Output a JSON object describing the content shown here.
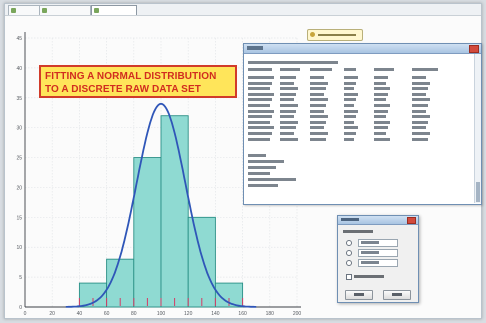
{
  "banner": {
    "line1": "FITTING A NORMAL DISTRIBUTION",
    "line2": "TO A DISCRETE RAW DATA SET"
  },
  "chart_data": {
    "type": "bar",
    "categories": [
      "40-60",
      "60-80",
      "80-100",
      "100-120",
      "120-140",
      "140-160"
    ],
    "values": [
      4,
      8,
      25,
      32,
      15,
      4
    ],
    "xlim": [
      0,
      200
    ],
    "ylim": [
      0,
      45
    ],
    "x_ticks": [
      0,
      20,
      40,
      60,
      80,
      100,
      120,
      140,
      160,
      180,
      200
    ],
    "y_ticks": [
      0,
      5,
      10,
      15,
      20,
      25,
      30,
      35,
      40,
      45
    ],
    "grid": true,
    "overlay": {
      "type": "normal_curve",
      "mean": 100,
      "sd": 18
    },
    "colors": {
      "bars": "#8fdad2",
      "bar_edge": "#2a8f86",
      "curve": "#2f56b8",
      "ticks": "#d63a64"
    }
  }
}
